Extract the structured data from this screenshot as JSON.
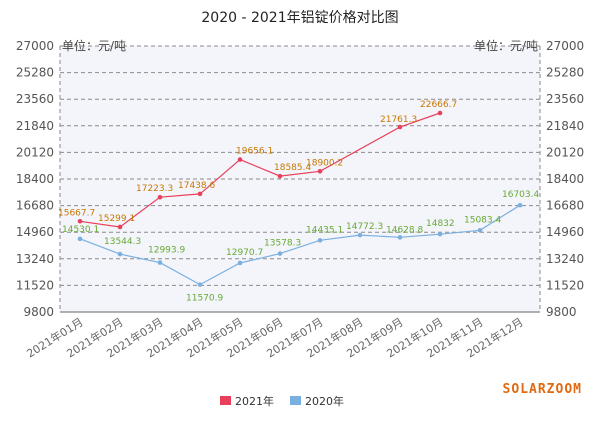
{
  "chart_data": {
    "type": "line",
    "title": "2020 - 2021年铝锭价格对比图",
    "unit_left": "单位：元/吨",
    "unit_right": "单位：元/吨",
    "brand": "SOLARZOOM",
    "grid": "dashed horizontal",
    "legend_position": "bottom-center",
    "ylim": [
      9800,
      27000
    ],
    "yticks": [
      27000,
      25280,
      23560,
      21840,
      20120,
      18400,
      16680,
      14960,
      13240,
      11520,
      9800
    ],
    "categories": [
      "2021年01月",
      "2021年02月",
      "2021年03月",
      "2021年04月",
      "2021年05月",
      "2021年06月",
      "2021年07月",
      "2021年08月",
      "2021年09月",
      "2021年10月",
      "2021年11月",
      "2021年12月"
    ],
    "series": [
      {
        "name": "2021年",
        "color": "#e8405a",
        "label_color": "#c87800",
        "values": [
          15667.7,
          15299.1,
          17223.3,
          17438.6,
          19656.1,
          18585.4,
          18900.2,
          null,
          21761.3,
          22666.7,
          null,
          null
        ],
        "labels": [
          "15667.7",
          "15299.1",
          "17223.3",
          "17438.6",
          "19656.1",
          "18585.4",
          "18900.2",
          null,
          "21761.3",
          "22666.7",
          null,
          null
        ]
      },
      {
        "name": "2020年",
        "color": "#7ab0e0",
        "label_color": "#66aa33",
        "values": [
          14530.1,
          13544.3,
          12993.9,
          11570.9,
          12970.7,
          13578.3,
          14435.1,
          14772.3,
          14628.8,
          14832,
          15083.4,
          16703.4
        ],
        "labels": [
          "14530.1",
          "13544.3",
          "12993.9",
          "11570.9",
          "12970.7",
          "13578.3",
          "14435.1",
          "14772.3",
          "14628.8",
          "14832",
          "15083.4",
          "16703.4"
        ]
      }
    ]
  }
}
